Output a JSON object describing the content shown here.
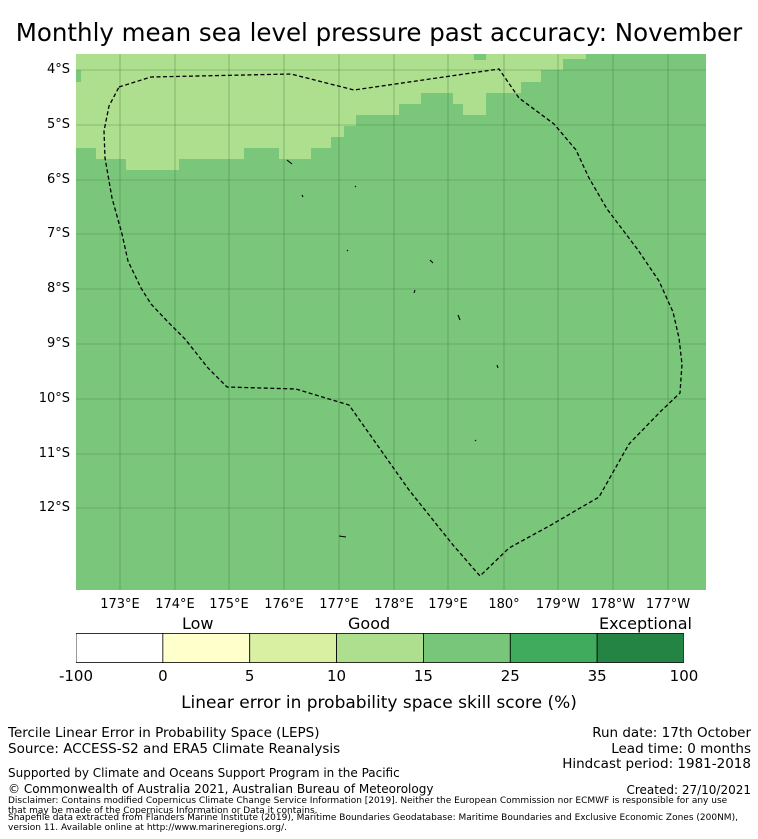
{
  "title": "Monthly mean sea level pressure past accuracy: November",
  "map": {
    "lat_labels": [
      "4°S",
      "5°S",
      "6°S",
      "7°S",
      "8°S",
      "9°S",
      "10°S",
      "11°S",
      "12°S"
    ],
    "lon_labels": [
      "173°E",
      "174°E",
      "175°E",
      "176°E",
      "177°E",
      "178°E",
      "179°E",
      "180°",
      "179°W",
      "178°W",
      "177°W"
    ],
    "colors": {
      "skill_15_25": "#7ac77b",
      "skill_10_15": "#addf8e",
      "gridline": "#3e7a3e",
      "boundary": "#000000"
    },
    "boundary_style": "dashed"
  },
  "colorbar": {
    "categories": [
      "Low",
      "Good",
      "Exceptional"
    ],
    "ticks": [
      "-100",
      "0",
      "5",
      "10",
      "15",
      "25",
      "35",
      "100"
    ],
    "colors": [
      "#ffffff",
      "#ffffcc",
      "#d9f0a3",
      "#addf8e",
      "#78c679",
      "#41ab5d",
      "#238443"
    ],
    "label": "Linear error in probability space skill score (%)"
  },
  "info": {
    "method": "Tercile Linear Error in Probability Space (LEPS)",
    "source": "Source: ACCESS-S2 and ERA5 Climate Reanalysis",
    "run_date": "Run date: 17th October",
    "lead_time": "Lead time: 0 months",
    "hindcast": "Hindcast period: 1981-2018",
    "support": "Supported by Climate and Oceans Support Program in the Pacific",
    "copyright": "© Commonwealth of Australia 2021, Australian Bureau of Meteorology",
    "created": "Created: 27/10/2021",
    "disclaimer_1": "Disclaimer: Contains modified Copernicus Climate Change Service Information [2019]. Neither the European Commission nor ECMWF is responsible for any use",
    "disclaimer_2": "that may be made of the Copernicus Information or Data it contains.",
    "shapefile_1": "Shapefile data extracted from Flanders Marine Institute (2019), Maritime Boundaries Geodatabase: Maritime Boundaries and Exclusive Economic Zones (200NM),",
    "shapefile_2": "version 11. Available online at http://www.marineregions.org/."
  }
}
